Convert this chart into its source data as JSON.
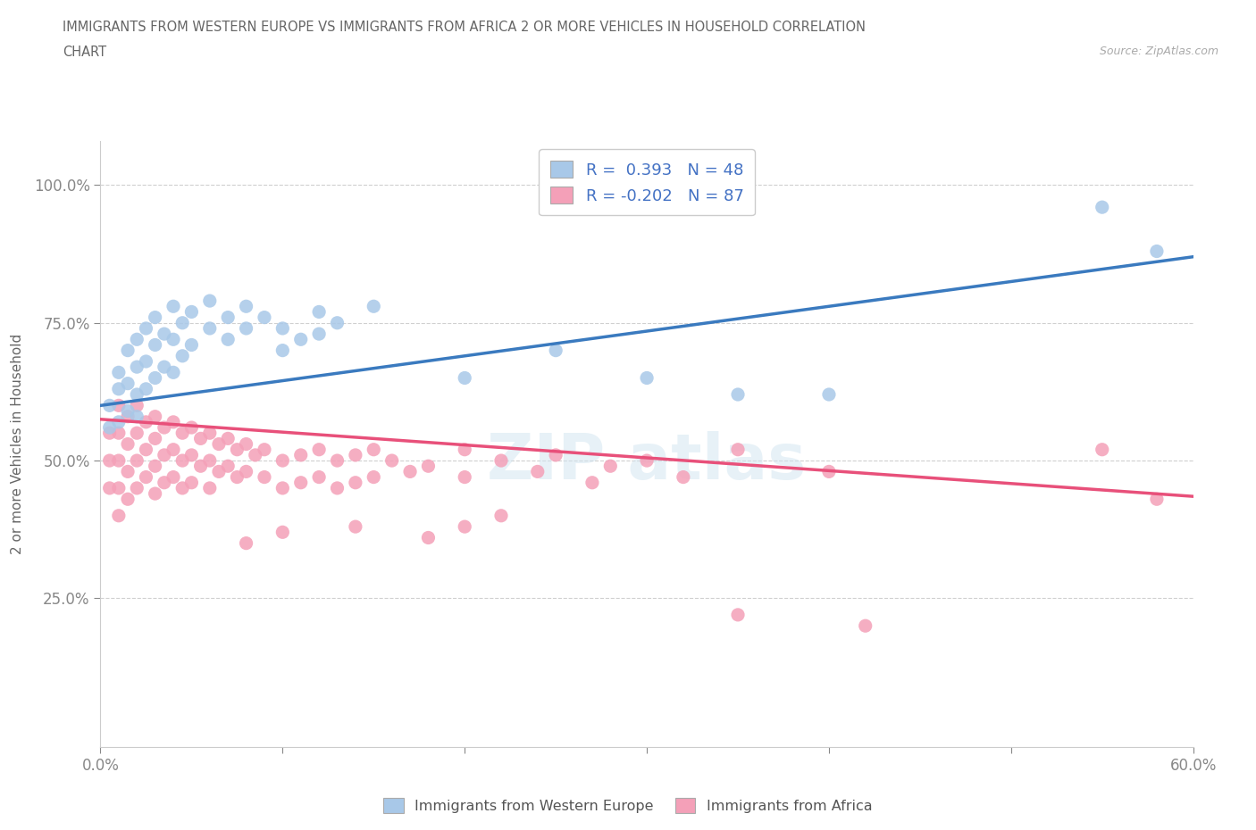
{
  "title_line1": "IMMIGRANTS FROM WESTERN EUROPE VS IMMIGRANTS FROM AFRICA 2 OR MORE VEHICLES IN HOUSEHOLD CORRELATION",
  "title_line2": "CHART",
  "source_text": "Source: ZipAtlas.com",
  "ylabel": "2 or more Vehicles in Household",
  "xlim": [
    0.0,
    0.6
  ],
  "ylim": [
    -0.02,
    1.08
  ],
  "xticks": [
    0.0,
    0.1,
    0.2,
    0.3,
    0.4,
    0.5,
    0.6
  ],
  "xticklabels": [
    "0.0%",
    "",
    "",
    "",
    "",
    "",
    "60.0%"
  ],
  "yticks": [
    0.25,
    0.5,
    0.75,
    1.0
  ],
  "yticklabels": [
    "25.0%",
    "50.0%",
    "75.0%",
    "100.0%"
  ],
  "color_blue": "#a8c8e8",
  "color_pink": "#f4a0b8",
  "color_blue_line": "#3a7abf",
  "color_pink_line": "#e8507a",
  "color_title": "#666666",
  "color_axis_label": "#666666",
  "color_tick": "#4472c4",
  "color_grid": "#d0d0d0",
  "blue_dots": [
    [
      0.005,
      0.6
    ],
    [
      0.005,
      0.56
    ],
    [
      0.01,
      0.63
    ],
    [
      0.01,
      0.57
    ],
    [
      0.01,
      0.66
    ],
    [
      0.015,
      0.7
    ],
    [
      0.015,
      0.64
    ],
    [
      0.015,
      0.59
    ],
    [
      0.02,
      0.72
    ],
    [
      0.02,
      0.67
    ],
    [
      0.02,
      0.62
    ],
    [
      0.02,
      0.58
    ],
    [
      0.025,
      0.74
    ],
    [
      0.025,
      0.68
    ],
    [
      0.025,
      0.63
    ],
    [
      0.03,
      0.76
    ],
    [
      0.03,
      0.71
    ],
    [
      0.03,
      0.65
    ],
    [
      0.035,
      0.73
    ],
    [
      0.035,
      0.67
    ],
    [
      0.04,
      0.78
    ],
    [
      0.04,
      0.72
    ],
    [
      0.04,
      0.66
    ],
    [
      0.045,
      0.75
    ],
    [
      0.045,
      0.69
    ],
    [
      0.05,
      0.77
    ],
    [
      0.05,
      0.71
    ],
    [
      0.06,
      0.79
    ],
    [
      0.06,
      0.74
    ],
    [
      0.07,
      0.76
    ],
    [
      0.07,
      0.72
    ],
    [
      0.08,
      0.78
    ],
    [
      0.08,
      0.74
    ],
    [
      0.09,
      0.76
    ],
    [
      0.1,
      0.74
    ],
    [
      0.1,
      0.7
    ],
    [
      0.11,
      0.72
    ],
    [
      0.12,
      0.77
    ],
    [
      0.12,
      0.73
    ],
    [
      0.13,
      0.75
    ],
    [
      0.15,
      0.78
    ],
    [
      0.2,
      0.65
    ],
    [
      0.25,
      0.7
    ],
    [
      0.3,
      0.65
    ],
    [
      0.35,
      0.62
    ],
    [
      0.4,
      0.62
    ],
    [
      0.55,
      0.96
    ],
    [
      0.58,
      0.88
    ]
  ],
  "pink_dots": [
    [
      0.005,
      0.55
    ],
    [
      0.005,
      0.5
    ],
    [
      0.005,
      0.45
    ],
    [
      0.01,
      0.6
    ],
    [
      0.01,
      0.55
    ],
    [
      0.01,
      0.5
    ],
    [
      0.01,
      0.45
    ],
    [
      0.01,
      0.4
    ],
    [
      0.015,
      0.58
    ],
    [
      0.015,
      0.53
    ],
    [
      0.015,
      0.48
    ],
    [
      0.015,
      0.43
    ],
    [
      0.02,
      0.6
    ],
    [
      0.02,
      0.55
    ],
    [
      0.02,
      0.5
    ],
    [
      0.02,
      0.45
    ],
    [
      0.025,
      0.57
    ],
    [
      0.025,
      0.52
    ],
    [
      0.025,
      0.47
    ],
    [
      0.03,
      0.58
    ],
    [
      0.03,
      0.54
    ],
    [
      0.03,
      0.49
    ],
    [
      0.03,
      0.44
    ],
    [
      0.035,
      0.56
    ],
    [
      0.035,
      0.51
    ],
    [
      0.035,
      0.46
    ],
    [
      0.04,
      0.57
    ],
    [
      0.04,
      0.52
    ],
    [
      0.04,
      0.47
    ],
    [
      0.045,
      0.55
    ],
    [
      0.045,
      0.5
    ],
    [
      0.045,
      0.45
    ],
    [
      0.05,
      0.56
    ],
    [
      0.05,
      0.51
    ],
    [
      0.05,
      0.46
    ],
    [
      0.055,
      0.54
    ],
    [
      0.055,
      0.49
    ],
    [
      0.06,
      0.55
    ],
    [
      0.06,
      0.5
    ],
    [
      0.06,
      0.45
    ],
    [
      0.065,
      0.53
    ],
    [
      0.065,
      0.48
    ],
    [
      0.07,
      0.54
    ],
    [
      0.07,
      0.49
    ],
    [
      0.075,
      0.52
    ],
    [
      0.075,
      0.47
    ],
    [
      0.08,
      0.53
    ],
    [
      0.08,
      0.48
    ],
    [
      0.085,
      0.51
    ],
    [
      0.09,
      0.52
    ],
    [
      0.09,
      0.47
    ],
    [
      0.1,
      0.5
    ],
    [
      0.1,
      0.45
    ],
    [
      0.11,
      0.51
    ],
    [
      0.11,
      0.46
    ],
    [
      0.12,
      0.52
    ],
    [
      0.12,
      0.47
    ],
    [
      0.13,
      0.5
    ],
    [
      0.13,
      0.45
    ],
    [
      0.14,
      0.51
    ],
    [
      0.14,
      0.46
    ],
    [
      0.15,
      0.52
    ],
    [
      0.15,
      0.47
    ],
    [
      0.16,
      0.5
    ],
    [
      0.17,
      0.48
    ],
    [
      0.18,
      0.49
    ],
    [
      0.2,
      0.52
    ],
    [
      0.2,
      0.47
    ],
    [
      0.22,
      0.5
    ],
    [
      0.24,
      0.48
    ],
    [
      0.25,
      0.51
    ],
    [
      0.27,
      0.46
    ],
    [
      0.28,
      0.49
    ],
    [
      0.3,
      0.5
    ],
    [
      0.32,
      0.47
    ],
    [
      0.14,
      0.38
    ],
    [
      0.18,
      0.36
    ],
    [
      0.2,
      0.38
    ],
    [
      0.22,
      0.4
    ],
    [
      0.08,
      0.35
    ],
    [
      0.1,
      0.37
    ],
    [
      0.35,
      0.52
    ],
    [
      0.4,
      0.48
    ],
    [
      0.55,
      0.52
    ],
    [
      0.58,
      0.43
    ],
    [
      0.35,
      0.22
    ],
    [
      0.42,
      0.2
    ]
  ],
  "blue_line_x": [
    0.0,
    0.6
  ],
  "blue_line_y": [
    0.6,
    0.87
  ],
  "pink_line_x": [
    0.0,
    0.6
  ],
  "pink_line_y": [
    0.575,
    0.435
  ]
}
